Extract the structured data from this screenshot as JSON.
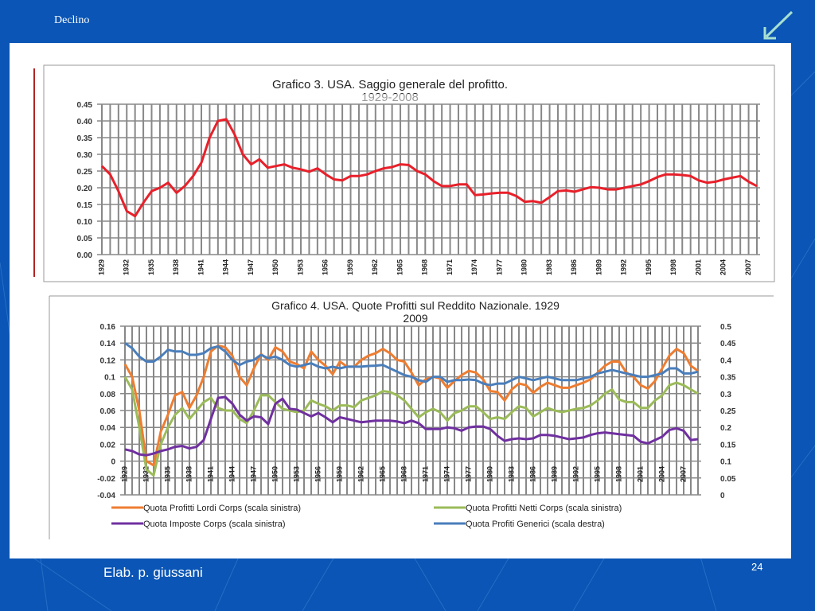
{
  "slide": {
    "title": "Declino",
    "footer": "Elab. p. giussani",
    "page_number": "24",
    "arrow_icon": "arrow-down-left-icon",
    "background_color": "#0a55b5"
  },
  "chart_data": [
    {
      "type": "line",
      "title": "Grafico 3. USA.  Saggio generale del profitto.",
      "subtitle": "1929-2008",
      "xlabel": "",
      "ylabel": "",
      "ylim": [
        0,
        0.45
      ],
      "yticks": [
        "0.00",
        "0.05",
        "0.10",
        "0.15",
        "0.20",
        "0.25",
        "0.30",
        "0.35",
        "0.40",
        "0.45"
      ],
      "xticks": [
        1929,
        1932,
        1935,
        1938,
        1941,
        1944,
        1947,
        1950,
        1953,
        1956,
        1959,
        1962,
        1965,
        1968,
        1971,
        1974,
        1977,
        1980,
        1983,
        1986,
        1989,
        1992,
        1995,
        1998,
        2001,
        2004,
        2007
      ],
      "grid": true,
      "x_start": 1929,
      "series": [
        {
          "name": "Saggio generale del profitto",
          "color": "#e8202a",
          "values": [
            0.265,
            0.24,
            0.19,
            0.13,
            0.115,
            0.155,
            0.19,
            0.2,
            0.215,
            0.185,
            0.205,
            0.235,
            0.275,
            0.35,
            0.4,
            0.405,
            0.36,
            0.3,
            0.27,
            0.285,
            0.26,
            0.265,
            0.27,
            0.26,
            0.255,
            0.248,
            0.258,
            0.24,
            0.225,
            0.222,
            0.235,
            0.235,
            0.24,
            0.25,
            0.258,
            0.262,
            0.27,
            0.268,
            0.25,
            0.24,
            0.22,
            0.205,
            0.205,
            0.21,
            0.21,
            0.178,
            0.18,
            0.183,
            0.185,
            0.185,
            0.175,
            0.158,
            0.16,
            0.155,
            0.172,
            0.19,
            0.192,
            0.188,
            0.195,
            0.202,
            0.2,
            0.195,
            0.195,
            0.2,
            0.205,
            0.21,
            0.22,
            0.232,
            0.24,
            0.24,
            0.238,
            0.235,
            0.222,
            0.215,
            0.218,
            0.225,
            0.23,
            0.235,
            0.218,
            0.205
          ]
        }
      ]
    },
    {
      "type": "line",
      "title": "Grafico 4. USA. Quote Profitti sul Reddito Nazionale. 1929",
      "subtitle": "2009",
      "ylim": [
        -0.04,
        0.16
      ],
      "y2lim": [
        0,
        0.5
      ],
      "yticks": [
        "-0.04",
        "-0.02",
        "0",
        "0.02",
        "0.04",
        "0.06",
        "0.08",
        "0.1",
        "0.12",
        "0.14",
        "0.16"
      ],
      "y2ticks": [
        "0",
        "0.05",
        "0.1",
        "0.15",
        "0.2",
        "0.25",
        "0.3",
        "0.35",
        "0.4",
        "0.45",
        "0.5"
      ],
      "xticks": [
        1929,
        1932,
        1935,
        1938,
        1941,
        1944,
        1947,
        1950,
        1953,
        1956,
        1959,
        1962,
        1965,
        1968,
        1971,
        1974,
        1977,
        1980,
        1983,
        1986,
        1989,
        1992,
        1995,
        1998,
        2001,
        2004,
        2007
      ],
      "grid": true,
      "legend_position": "bottom",
      "x_start": 1929,
      "series": [
        {
          "name": "Quota Profitti Lordi Corps  (scala sinistra)",
          "axis": "left",
          "color": "#ee7d31",
          "values": [
            0.115,
            0.1,
            0.06,
            0.0,
            -0.005,
            0.035,
            0.055,
            0.078,
            0.082,
            0.063,
            0.078,
            0.1,
            0.13,
            0.137,
            0.135,
            0.125,
            0.1,
            0.09,
            0.11,
            0.127,
            0.12,
            0.135,
            0.13,
            0.118,
            0.115,
            0.11,
            0.13,
            0.12,
            0.113,
            0.103,
            0.118,
            0.112,
            0.112,
            0.12,
            0.125,
            0.128,
            0.133,
            0.128,
            0.12,
            0.118,
            0.105,
            0.09,
            0.097,
            0.1,
            0.098,
            0.087,
            0.095,
            0.102,
            0.107,
            0.105,
            0.097,
            0.083,
            0.082,
            0.072,
            0.085,
            0.092,
            0.09,
            0.081,
            0.088,
            0.093,
            0.09,
            0.087,
            0.087,
            0.09,
            0.093,
            0.097,
            0.105,
            0.113,
            0.118,
            0.118,
            0.105,
            0.1,
            0.09,
            0.086,
            0.095,
            0.11,
            0.125,
            0.133,
            0.128,
            0.113,
            0.107
          ]
        },
        {
          "name": "Quota Profitti Netti Corps (scala sinistra)",
          "axis": "left",
          "color": "#9bbb59",
          "values": [
            0.1,
            0.085,
            0.04,
            -0.01,
            -0.017,
            0.02,
            0.04,
            0.055,
            0.063,
            0.05,
            0.06,
            0.07,
            0.075,
            0.063,
            0.06,
            0.06,
            0.05,
            0.045,
            0.06,
            0.078,
            0.078,
            0.07,
            0.062,
            0.06,
            0.058,
            0.06,
            0.072,
            0.068,
            0.065,
            0.06,
            0.066,
            0.066,
            0.064,
            0.072,
            0.075,
            0.078,
            0.083,
            0.082,
            0.078,
            0.072,
            0.062,
            0.052,
            0.058,
            0.062,
            0.058,
            0.048,
            0.057,
            0.06,
            0.065,
            0.065,
            0.058,
            0.05,
            0.052,
            0.05,
            0.058,
            0.065,
            0.063,
            0.053,
            0.058,
            0.063,
            0.06,
            0.058,
            0.06,
            0.062,
            0.063,
            0.066,
            0.072,
            0.08,
            0.085,
            0.073,
            0.07,
            0.07,
            0.063,
            0.063,
            0.072,
            0.078,
            0.09,
            0.093,
            0.09,
            0.085,
            0.08
          ]
        },
        {
          "name": "Quota Imposte Corps (scala sinistra)",
          "axis": "left",
          "color": "#7030a0",
          "values": [
            0.014,
            0.012,
            0.008,
            0.007,
            0.009,
            0.012,
            0.014,
            0.017,
            0.018,
            0.015,
            0.017,
            0.025,
            0.05,
            0.075,
            0.076,
            0.068,
            0.055,
            0.048,
            0.053,
            0.052,
            0.044,
            0.068,
            0.074,
            0.062,
            0.061,
            0.057,
            0.053,
            0.057,
            0.052,
            0.046,
            0.052,
            0.05,
            0.048,
            0.046,
            0.047,
            0.048,
            0.048,
            0.048,
            0.047,
            0.045,
            0.048,
            0.045,
            0.038,
            0.038,
            0.038,
            0.04,
            0.039,
            0.036,
            0.04,
            0.041,
            0.041,
            0.038,
            0.03,
            0.024,
            0.026,
            0.027,
            0.026,
            0.027,
            0.031,
            0.031,
            0.03,
            0.028,
            0.026,
            0.027,
            0.028,
            0.031,
            0.033,
            0.034,
            0.033,
            0.032,
            0.031,
            0.03,
            0.023,
            0.021,
            0.025,
            0.029,
            0.037,
            0.039,
            0.036,
            0.025,
            0.026
          ]
        },
        {
          "name": "Quota Profiti Generici (scala destra)",
          "axis": "right",
          "color": "#4a7ebb",
          "values": [
            0.45,
            0.435,
            0.41,
            0.395,
            0.395,
            0.41,
            0.43,
            0.425,
            0.425,
            0.415,
            0.415,
            0.42,
            0.435,
            0.44,
            0.425,
            0.4,
            0.385,
            0.395,
            0.4,
            0.415,
            0.405,
            0.41,
            0.4,
            0.385,
            0.38,
            0.385,
            0.39,
            0.38,
            0.375,
            0.38,
            0.375,
            0.38,
            0.38,
            0.38,
            0.382,
            0.383,
            0.385,
            0.375,
            0.365,
            0.355,
            0.35,
            0.34,
            0.335,
            0.35,
            0.35,
            0.335,
            0.34,
            0.34,
            0.342,
            0.34,
            0.33,
            0.325,
            0.33,
            0.33,
            0.34,
            0.35,
            0.345,
            0.34,
            0.345,
            0.35,
            0.345,
            0.34,
            0.34,
            0.34,
            0.345,
            0.35,
            0.36,
            0.365,
            0.37,
            0.365,
            0.36,
            0.355,
            0.35,
            0.35,
            0.355,
            0.36,
            0.375,
            0.375,
            0.36,
            0.36,
            0.365
          ]
        }
      ]
    }
  ]
}
